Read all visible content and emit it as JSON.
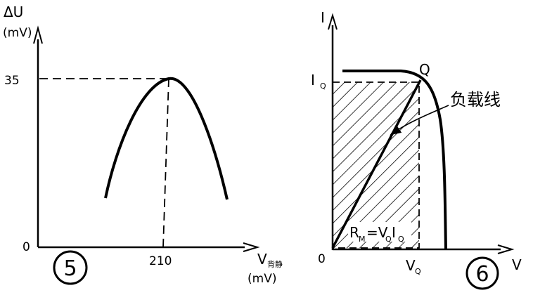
{
  "left_plot": {
    "y_label": "ΔU",
    "y_unit": "(mV)",
    "y_tick_35": "35",
    "origin": "0",
    "x_tick_210": "210",
    "x_label": "V",
    "x_label_sub": "背静",
    "x_unit": "(mV)",
    "figure_number": "5"
  },
  "right_plot": {
    "y_label": "I",
    "iq_label": "I",
    "iq_sub": "Q",
    "q_label": "Q",
    "load_line_label": "负载线",
    "origin": "0",
    "vq_label": "V",
    "vq_sub": "Q",
    "x_label": "V",
    "formula_r": "R",
    "formula_r_sub": "M",
    "formula_eq": "=V",
    "formula_vq_sub": "Q",
    "formula_i": "I",
    "formula_iq_sub": "Q",
    "figure_number": "6"
  }
}
